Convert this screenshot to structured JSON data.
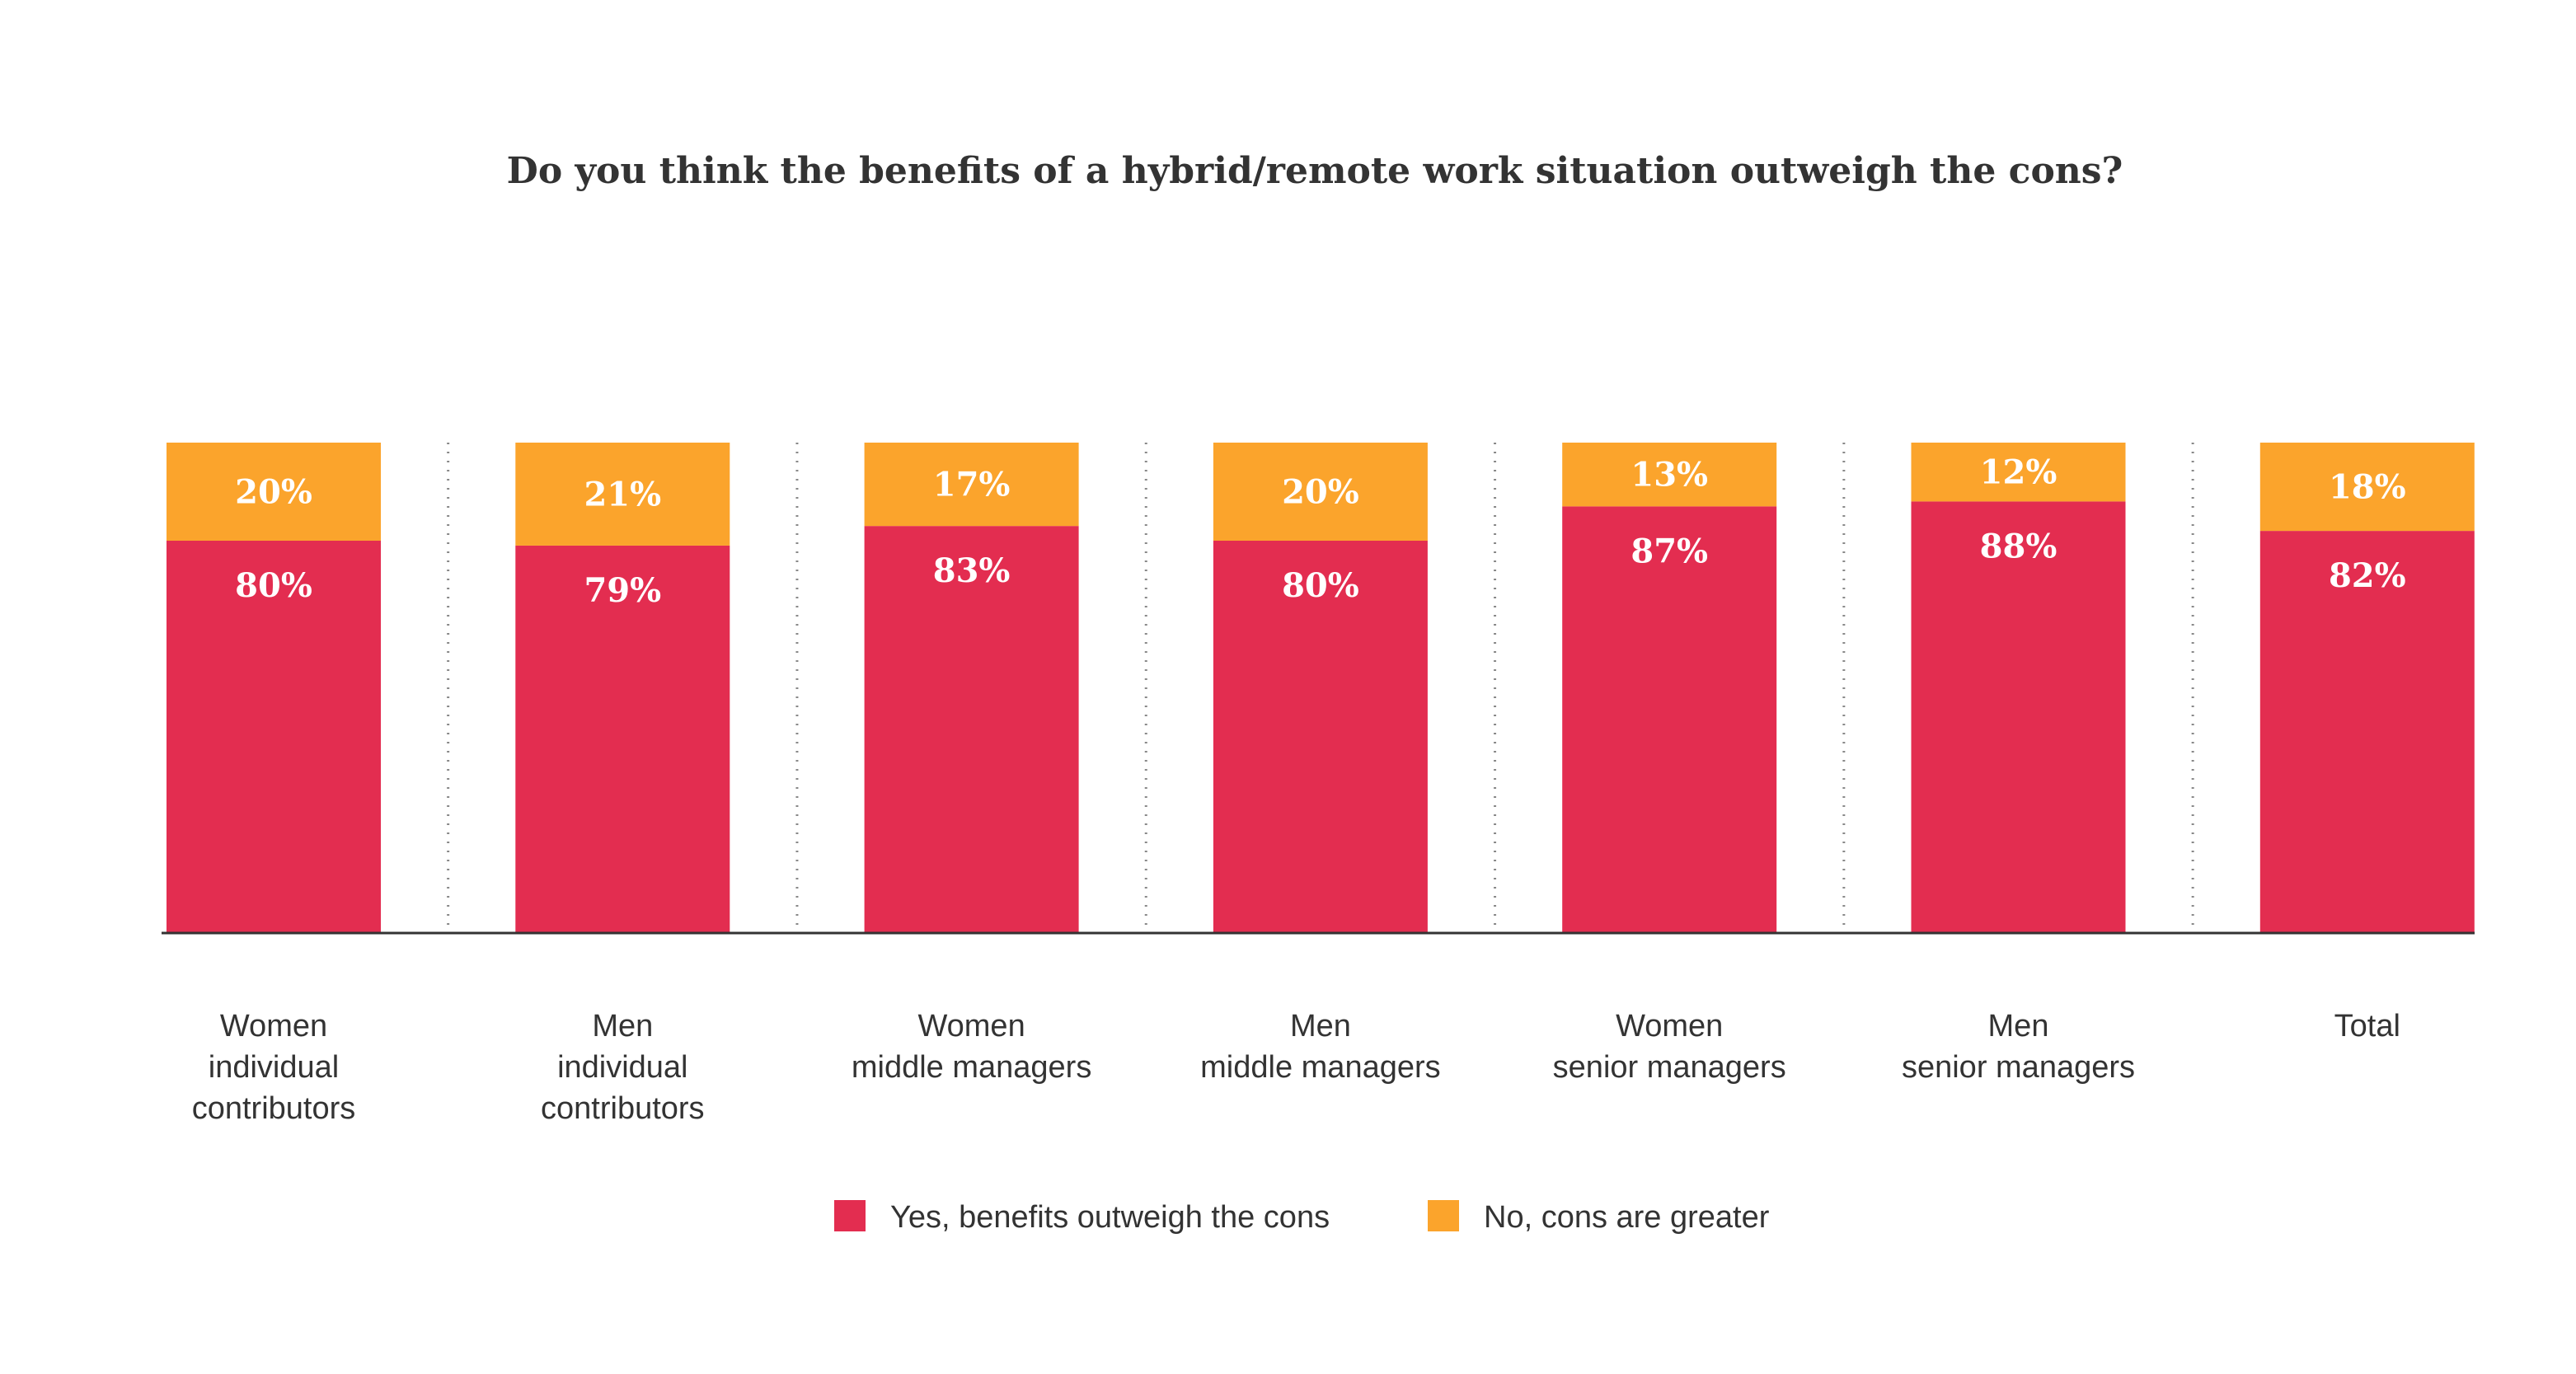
{
  "chart_data": {
    "type": "bar",
    "stacked": true,
    "percent": true,
    "title": "Do you think the benefits of a hybrid/remote work situation outweigh the cons?",
    "categories": [
      [
        "Women",
        "individual",
        "contributors"
      ],
      [
        "Men",
        "individual",
        "contributors"
      ],
      [
        "Women",
        "middle managers"
      ],
      [
        "Men",
        "middle managers"
      ],
      [
        "Women",
        "senior managers"
      ],
      [
        "Men",
        "senior managers"
      ],
      [
        "Total"
      ]
    ],
    "series": [
      {
        "name": "Yes, benefits outweigh the cons",
        "values": [
          80,
          79,
          83,
          80,
          87,
          88,
          82
        ],
        "labels": [
          "80%",
          "79%",
          "83%",
          "80%",
          "87%",
          "88%",
          "82%"
        ],
        "color": "#E32D50"
      },
      {
        "name": "No, cons are greater",
        "values": [
          20,
          21,
          17,
          20,
          13,
          12,
          18
        ],
        "labels": [
          "20%",
          "21%",
          "17%",
          "20%",
          "13%",
          "12%",
          "18%"
        ],
        "color": "#FBA42C"
      }
    ],
    "ylim": [
      0,
      100
    ],
    "grid": false,
    "separators": "dotted",
    "legend_position": "bottom"
  }
}
